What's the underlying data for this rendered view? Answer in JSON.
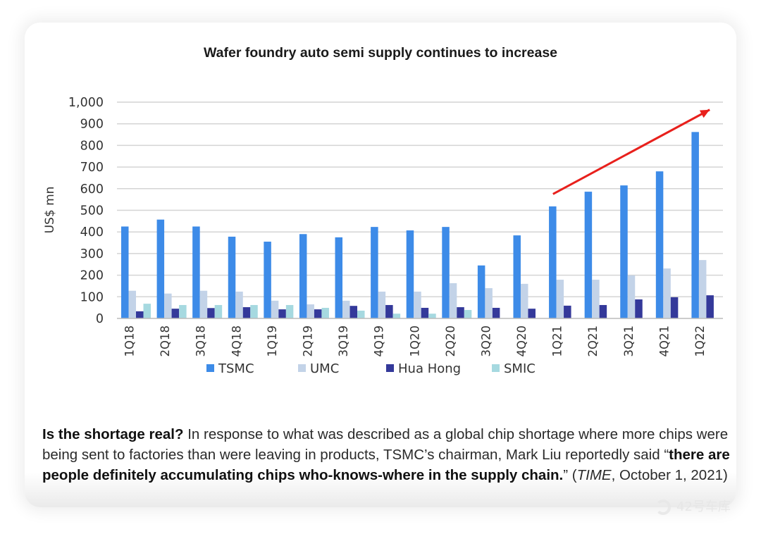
{
  "chart_data": {
    "type": "bar",
    "title": "Wafer foundry auto semi supply continues to increase",
    "xlabel": "",
    "ylabel": "US$ mn",
    "ylim": [
      0,
      1000
    ],
    "yticks": [
      0,
      100,
      200,
      300,
      400,
      500,
      600,
      700,
      800,
      900,
      1000
    ],
    "ytick_labels": [
      "0",
      "100",
      "200",
      "300",
      "400",
      "500",
      "600",
      "700",
      "800",
      "900",
      "1,000"
    ],
    "grid": true,
    "legend_position": "bottom",
    "categories": [
      "1Q18",
      "2Q18",
      "3Q18",
      "4Q18",
      "1Q19",
      "2Q19",
      "3Q19",
      "4Q19",
      "1Q20",
      "2Q20",
      "3Q20",
      "4Q20",
      "1Q21",
      "2Q21",
      "3Q21",
      "4Q21",
      "1Q22"
    ],
    "series": [
      {
        "name": "TSMC",
        "color": "#3d8be8",
        "values": [
          425,
          457,
          425,
          378,
          355,
          390,
          375,
          423,
          407,
          423,
          245,
          384,
          518,
          586,
          615,
          680,
          862
        ]
      },
      {
        "name": "UMC",
        "color": "#c3d3e8",
        "values": [
          128,
          115,
          128,
          124,
          82,
          65,
          82,
          124,
          124,
          163,
          140,
          160,
          179,
          179,
          199,
          231,
          270
        ]
      },
      {
        "name": "Hua Hong",
        "color": "#34399a",
        "values": [
          33,
          45,
          48,
          52,
          42,
          42,
          58,
          62,
          49,
          52,
          49,
          45,
          59,
          62,
          88,
          98,
          107
        ]
      },
      {
        "name": "SMIC",
        "color": "#a6d9e0",
        "values": [
          68,
          62,
          62,
          62,
          62,
          49,
          36,
          22,
          22,
          39,
          0,
          0,
          0,
          0,
          0,
          0,
          0
        ]
      }
    ],
    "annotations": [
      {
        "type": "arrow",
        "color": "#e8201c",
        "from": {
          "category": "1Q21",
          "value": 575
        },
        "to": {
          "category": "1Q22",
          "value": 965
        }
      }
    ]
  },
  "caption": {
    "lead_bold": "Is the shortage real?",
    "text1": " In response to what was described as a global chip shortage where more chips were being sent to factories than were leaving in products, TSMC’s chairman, Mark Liu reportedly said ",
    "open_quote": "“",
    "quote_bold": "there are people definitely accumulating chips who-knows-where in the supply chain.",
    "close_quote": "” (",
    "source_italic": "TIME",
    "source_rest": ", October 1, 2021)"
  },
  "watermark": {
    "icon": "garage-logo-icon",
    "text": "42号车库"
  }
}
